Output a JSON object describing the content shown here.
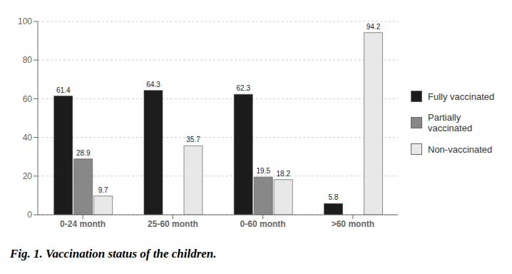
{
  "chart_data": {
    "type": "bar",
    "title": "Fig. 1. Vaccination status of the children.",
    "categories": [
      "0-24 month",
      "25-60 month",
      "0-60 month",
      ">60 month"
    ],
    "series": [
      {
        "name": "Fully vaccinated",
        "color": "#1c1c1c",
        "values": [
          61.4,
          64.3,
          62.3,
          5.8
        ]
      },
      {
        "name": "Partially\nvaccinated",
        "color": "#888888",
        "values": [
          28.9,
          0.0,
          19.5,
          0.0
        ]
      },
      {
        "name": "Non-vaccinated",
        "color": "#e8e8e8",
        "values": [
          9.7,
          35.7,
          18.2,
          94.2
        ]
      }
    ],
    "ylim": [
      0,
      100
    ],
    "yticks": [
      0,
      20,
      40,
      60,
      80,
      100
    ],
    "grid": true,
    "data_labels": true,
    "legend": "right"
  }
}
